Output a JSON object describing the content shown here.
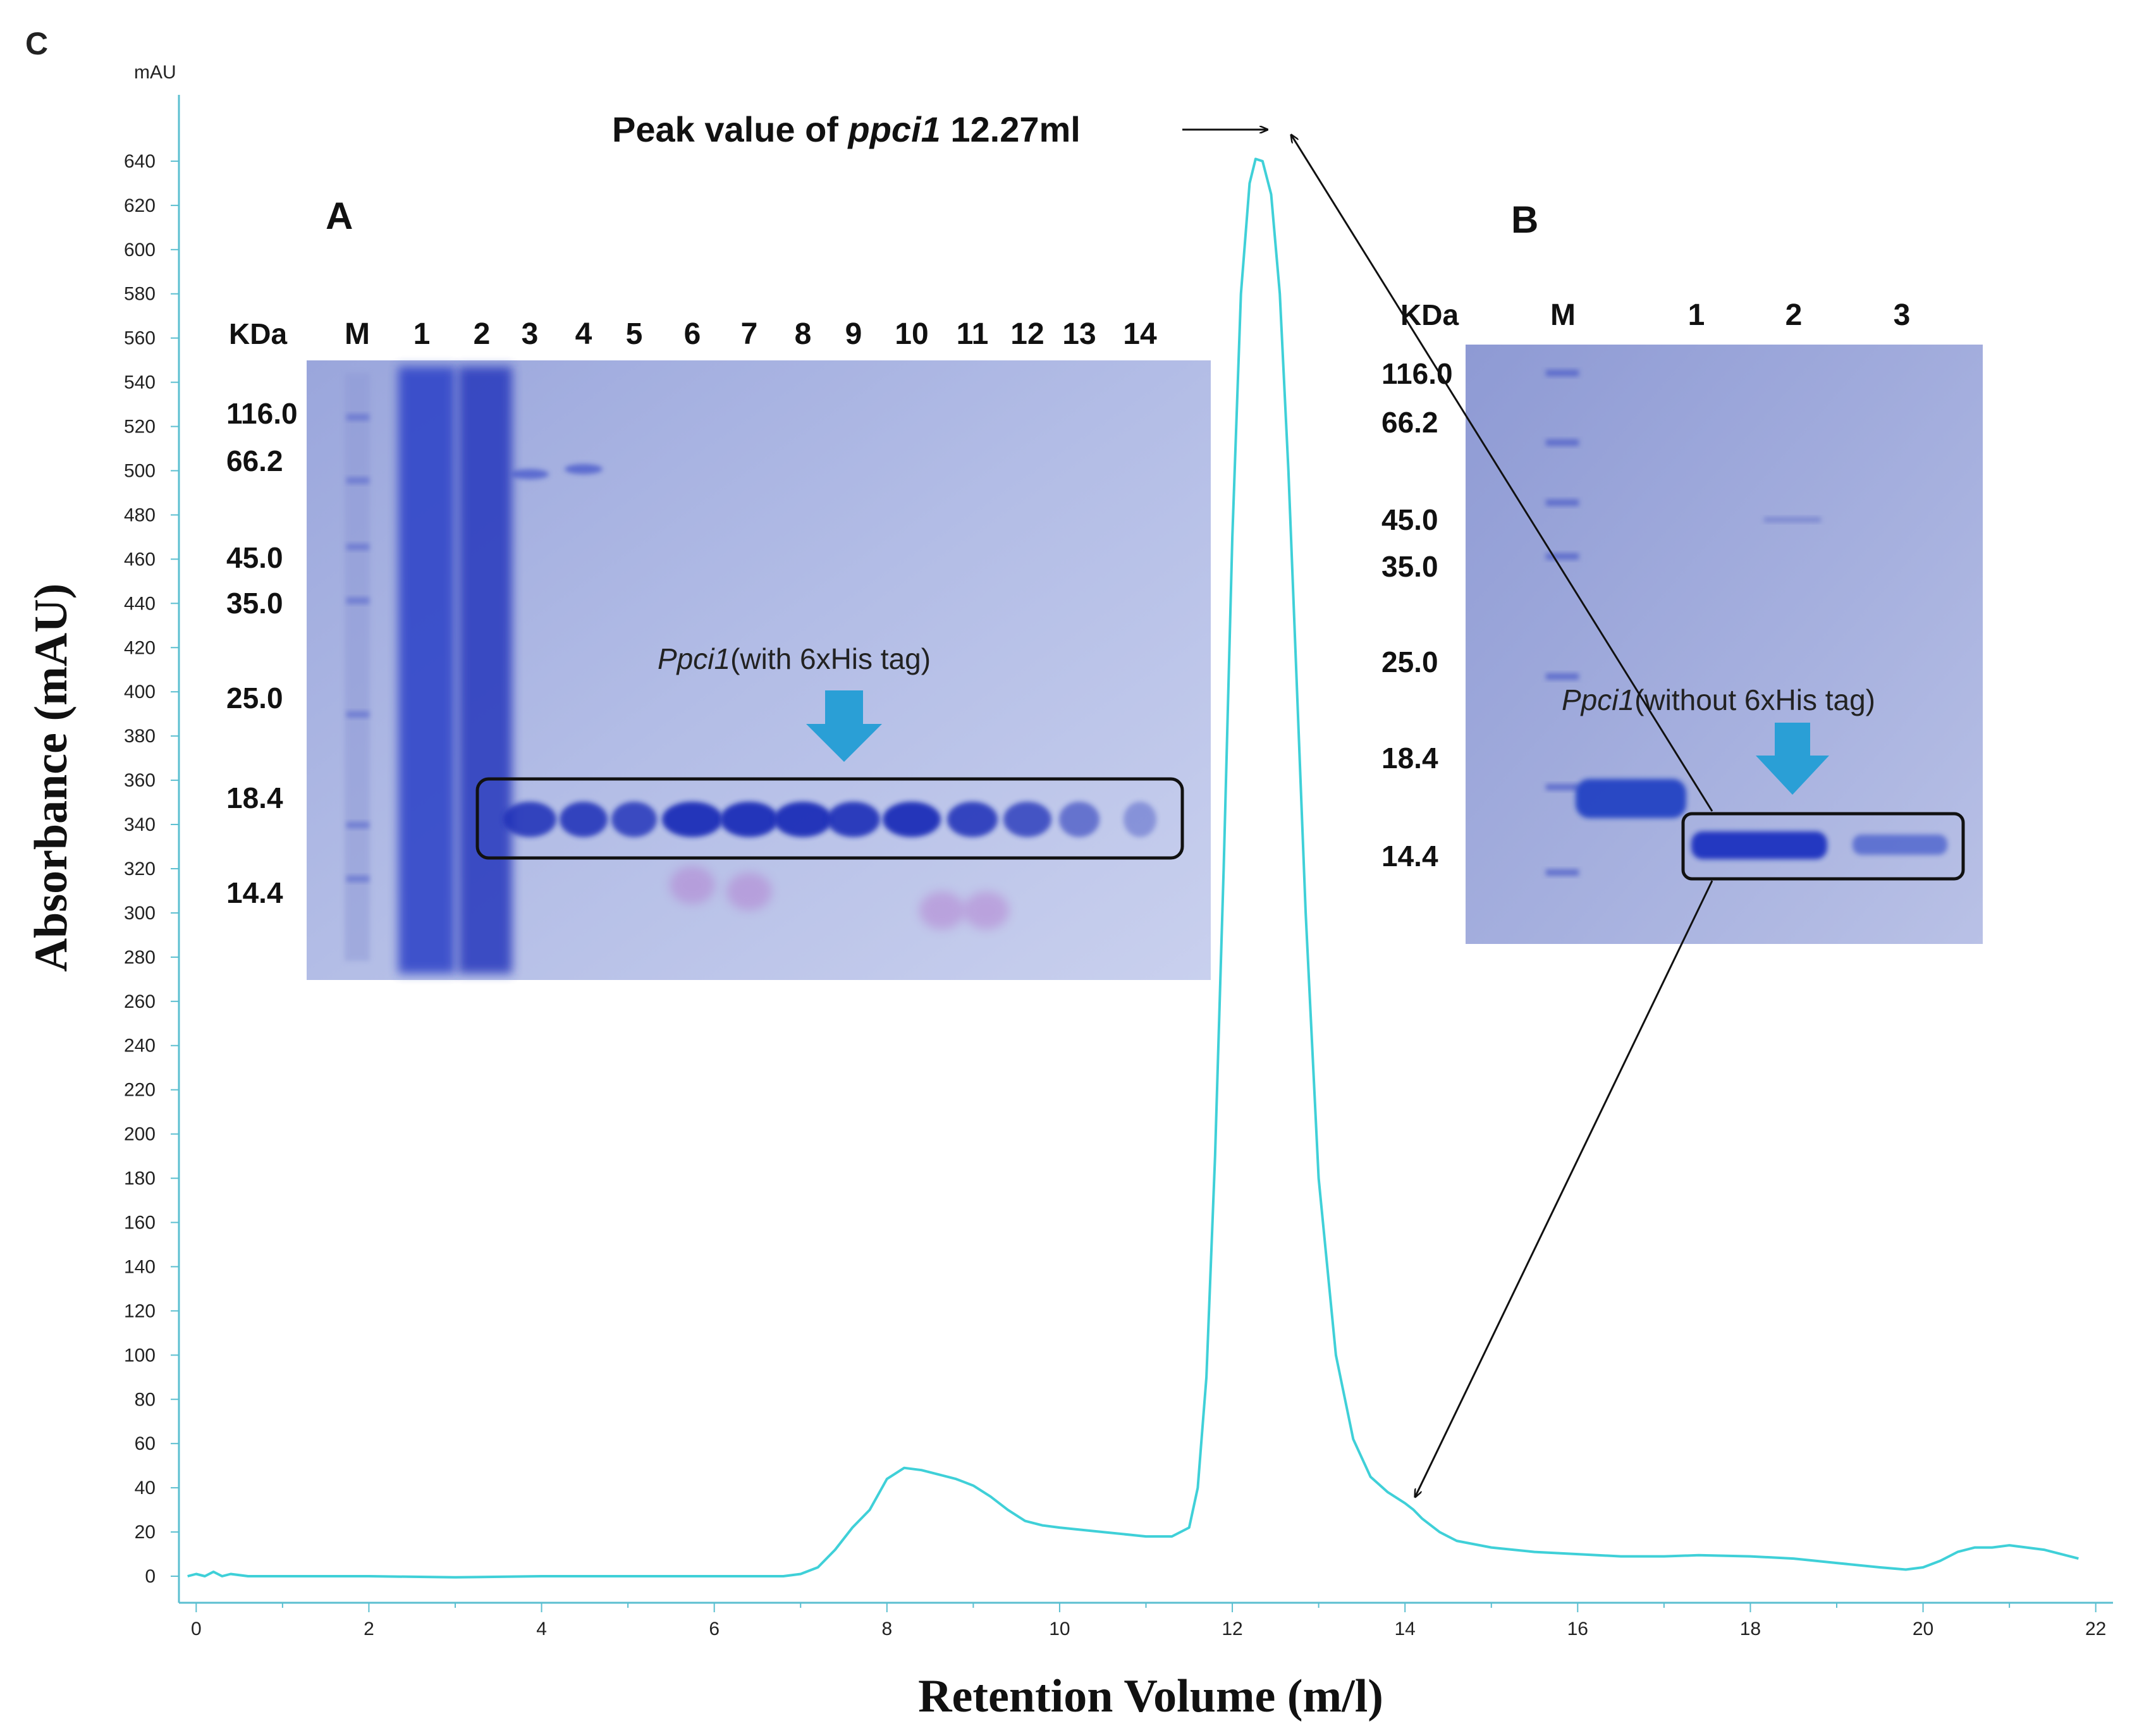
{
  "panel_letter": "C",
  "chart_data": {
    "type": "line",
    "title": "",
    "xlabel": "Retention Volume (m/l)",
    "ylabel": "Absorbance (mAU)",
    "yunit": "mAU",
    "xlim": [
      -0.2,
      22.2
    ],
    "ylim": [
      -12,
      670
    ],
    "xticks": [
      0,
      2,
      4,
      6,
      8,
      10,
      12,
      14,
      16,
      18,
      20,
      22
    ],
    "yticks": [
      0,
      20,
      40,
      60,
      80,
      100,
      120,
      140,
      160,
      180,
      200,
      220,
      240,
      260,
      280,
      300,
      320,
      340,
      360,
      380,
      400,
      420,
      440,
      460,
      480,
      500,
      520,
      540,
      560,
      580,
      600,
      620,
      640
    ],
    "line_color": "#3fd0d8",
    "series": [
      {
        "name": "ppci1 elution",
        "x": [
          -0.1,
          0.0,
          0.1,
          0.2,
          0.3,
          0.4,
          0.6,
          1,
          2,
          3,
          4,
          5,
          6,
          6.5,
          6.8,
          7.0,
          7.2,
          7.4,
          7.6,
          7.8,
          8.0,
          8.2,
          8.4,
          8.6,
          8.8,
          9.0,
          9.2,
          9.4,
          9.6,
          9.8,
          10.0,
          10.5,
          11.0,
          11.3,
          11.5,
          11.6,
          11.7,
          11.8,
          11.9,
          12.0,
          12.1,
          12.2,
          12.27,
          12.35,
          12.45,
          12.55,
          12.65,
          12.75,
          12.85,
          13.0,
          13.2,
          13.4,
          13.6,
          13.8,
          14.0,
          14.1,
          14.2,
          14.4,
          14.6,
          15.0,
          15.5,
          16,
          16.5,
          17,
          17.4,
          18,
          18.5,
          19,
          19.5,
          19.8,
          20.0,
          20.2,
          20.4,
          20.6,
          20.8,
          21.0,
          21.2,
          21.4,
          21.6,
          21.8
        ],
        "y": [
          0,
          1,
          0,
          2,
          0,
          1,
          0,
          0,
          0,
          -0.5,
          0,
          0,
          0,
          0,
          0,
          1,
          4,
          12,
          22,
          30,
          44,
          49,
          48,
          46,
          44,
          41,
          36,
          30,
          25,
          23,
          22,
          20,
          18,
          18,
          22,
          40,
          90,
          190,
          320,
          470,
          580,
          630,
          641,
          640,
          625,
          580,
          500,
          400,
          300,
          180,
          100,
          62,
          45,
          38,
          33,
          30,
          26,
          20,
          16,
          13,
          11,
          10,
          9,
          9,
          9.5,
          9,
          8,
          6,
          4,
          3,
          4,
          7,
          11,
          13,
          13,
          14,
          13,
          12,
          10,
          8
        ]
      }
    ],
    "annotations": {
      "peak_label": {
        "prefix": "Peak value of ",
        "italic": "ppci1",
        "suffix": " 12.27ml",
        "x": 12.27,
        "y": 641
      },
      "shoulder_point": {
        "x": 14.05,
        "y": 32
      }
    }
  },
  "gel_a": {
    "label": "A",
    "unit": "KDa",
    "lanes": [
      "M",
      "1",
      "2",
      "3",
      "4",
      "5",
      "6",
      "7",
      "8",
      "9",
      "10",
      "11",
      "12",
      "13",
      "14"
    ],
    "markers": [
      "116.0",
      "66.2",
      "45.0",
      "35.0",
      "25.0",
      "18.4",
      "14.4"
    ],
    "band_label_italic": "Ppci1",
    "band_label_rest": "(with 6xHis tag)",
    "arrow_color": "#2a9fd6"
  },
  "gel_b": {
    "label": "B",
    "unit": "KDa",
    "lanes": [
      "M",
      "1",
      "2",
      "3"
    ],
    "markers": [
      "116.0",
      "66.2",
      "45.0",
      "35.0",
      "25.0",
      "18.4",
      "14.4"
    ],
    "band_label_italic": "Ppci1",
    "band_label_rest": "(without 6xHis tag)",
    "arrow_color": "#2a9fd6"
  }
}
